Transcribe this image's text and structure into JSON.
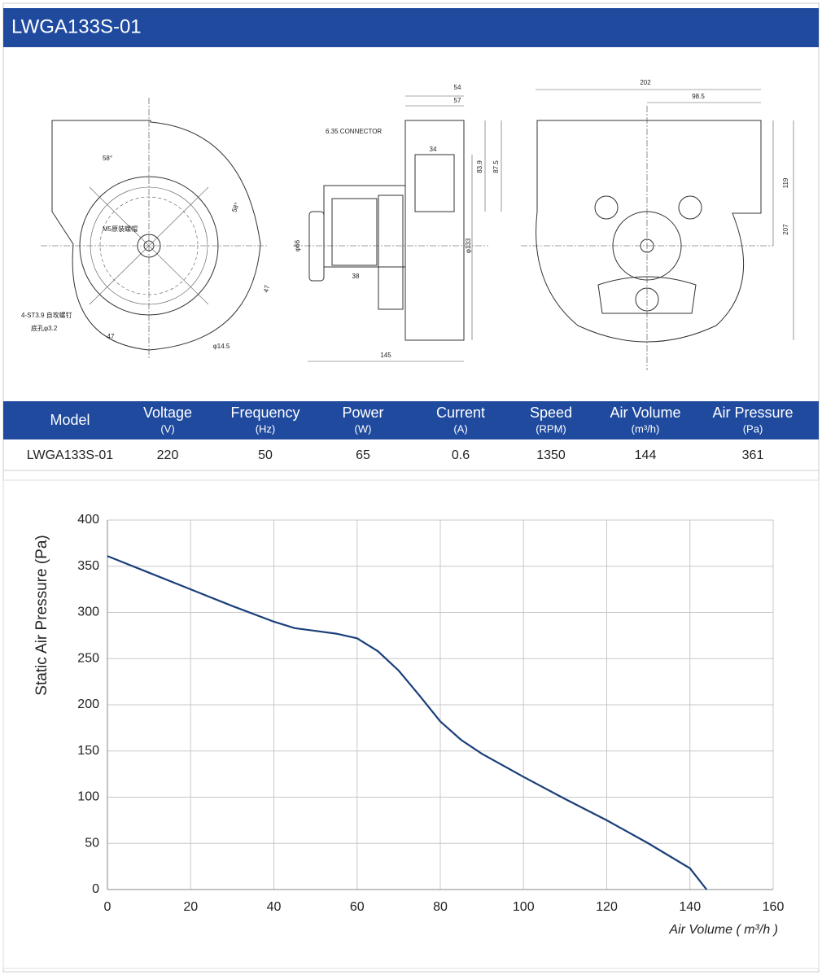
{
  "header": {
    "title": "LWGA133S-01"
  },
  "drawing": {
    "dimensions": [
      "54",
      "57",
      "34",
      "83.9",
      "87.5",
      "φ133",
      "φ66",
      "38",
      "145",
      "202",
      "98.5",
      "119",
      "207",
      "58°",
      "58°",
      "47",
      "47",
      "φ14.5",
      "4-ST3.9 自攻螺钉",
      "底孔φ3.2",
      "M5原装螺帽",
      "6.35 CONNECTOR"
    ]
  },
  "table": {
    "headers": [
      {
        "name": "Model"
      },
      {
        "name": "Voltage",
        "unit": "(V)"
      },
      {
        "name": "Frequency",
        "unit": "(Hz)"
      },
      {
        "name": "Power",
        "unit": "(W)"
      },
      {
        "name": "Current",
        "unit": "(A)"
      },
      {
        "name": "Speed",
        "unit": "(RPM)"
      },
      {
        "name": "Air Volume",
        "unit": "(m³/h)"
      },
      {
        "name": "Air Pressure",
        "unit": "(Pa)"
      }
    ],
    "rows": [
      [
        "LWGA133S-01",
        220,
        50,
        65,
        0.6,
        1350,
        144,
        361
      ]
    ]
  },
  "chart_data": {
    "type": "line",
    "x_label": "Air Volume ( m³/h )",
    "y_label": "Static Air Pressure  (Pa)",
    "x": [
      0,
      10,
      20,
      30,
      40,
      45,
      50,
      55,
      60,
      65,
      70,
      75,
      80,
      85,
      90,
      100,
      110,
      120,
      130,
      140,
      144
    ],
    "series": [
      {
        "color": "#1a3f7a",
        "values": [
          361,
          343,
          325,
          307,
          290,
          283,
          280,
          277,
          272,
          258,
          237,
          210,
          182,
          162,
          147,
          122,
          98,
          75,
          50,
          23,
          0
        ]
      }
    ],
    "xlim": [
      0,
      160
    ],
    "xticks": [
      0,
      20,
      40,
      60,
      80,
      100,
      120,
      140,
      160
    ],
    "ylim": [
      0,
      400
    ],
    "yticks": [
      0,
      50,
      100,
      150,
      200,
      250,
      300,
      350,
      400
    ],
    "grid": true
  }
}
